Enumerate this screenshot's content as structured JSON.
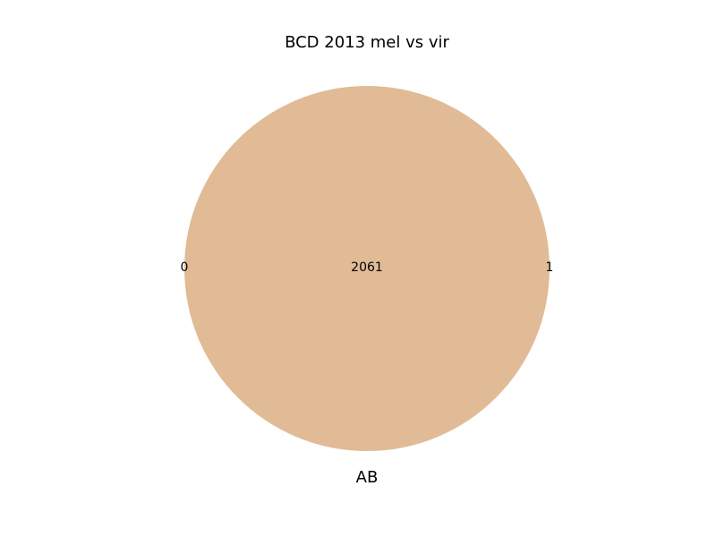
{
  "title": "BCD 2013 mel vs vir",
  "colors": {
    "overlap_fill": "#e0bb96"
  },
  "venn": {
    "type": "venn2",
    "counts": {
      "only_a": "0",
      "a_and_b": "2061",
      "only_b": "1"
    },
    "overlap_label": "AB"
  }
}
